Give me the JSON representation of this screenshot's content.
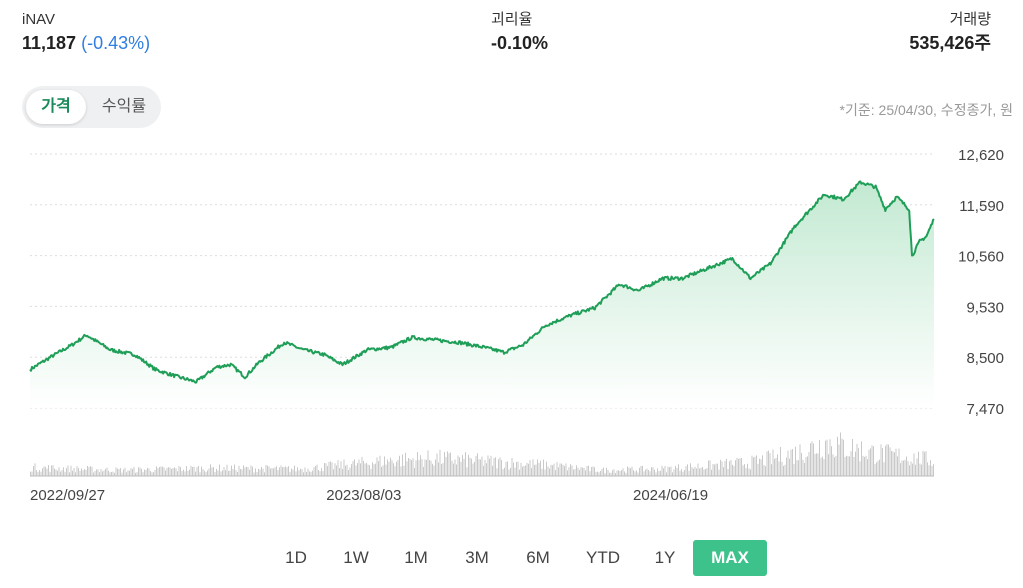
{
  "stats": {
    "inav": {
      "label": "iNAV",
      "value": "11,187",
      "change": "(-0.43%)"
    },
    "premium": {
      "label": "괴리율",
      "value": "-0.10%"
    },
    "volume": {
      "label": "거래량",
      "value": "535,426주"
    }
  },
  "toggle": {
    "price_label": "가격",
    "return_label": "수익률",
    "active": "price"
  },
  "basis_note": "*기준: 25/04/30, 수정종가, 원",
  "periods": [
    {
      "label": "1D",
      "active": false
    },
    {
      "label": "1W",
      "active": false
    },
    {
      "label": "1M",
      "active": false
    },
    {
      "label": "3M",
      "active": false
    },
    {
      "label": "6M",
      "active": false
    },
    {
      "label": "YTD",
      "active": false
    },
    {
      "label": "1Y",
      "active": false
    },
    {
      "label": "MAX",
      "active": true
    }
  ],
  "colors": {
    "line": "#1f9e58",
    "fill_top": "#bfe8cf",
    "volume": "#c9c9c9",
    "accent": "#3cc28a",
    "negative": "#2f7de1"
  },
  "chart_data": {
    "type": "line",
    "title": "",
    "xlabel": "",
    "ylabel": "",
    "ylim": [
      7470,
      12620
    ],
    "yticks": [
      "12,620",
      "11,590",
      "10,560",
      "9,530",
      "8,500",
      "7,470"
    ],
    "ytick_values": [
      12620,
      11590,
      10560,
      9530,
      8500,
      7470
    ],
    "xtick_labels": [
      "2022/09/27",
      "2023/08/03",
      "2024/06/19"
    ],
    "xrange": [
      "2022-09-27",
      "2025-04-30"
    ],
    "grid": true,
    "series": [
      {
        "points": [
          [
            "2022-09-27",
            8250
          ],
          [
            "2022-10-20",
            8520
          ],
          [
            "2022-11-10",
            8750
          ],
          [
            "2022-11-25",
            8950
          ],
          [
            "2022-12-20",
            8650
          ],
          [
            "2023-01-15",
            8550
          ],
          [
            "2023-02-05",
            8250
          ],
          [
            "2023-03-01",
            8100
          ],
          [
            "2023-03-20",
            8000
          ],
          [
            "2023-04-10",
            8300
          ],
          [
            "2023-04-25",
            8350
          ],
          [
            "2023-05-10",
            8100
          ],
          [
            "2023-05-25",
            8400
          ],
          [
            "2023-06-20",
            8800
          ],
          [
            "2023-07-10",
            8650
          ],
          [
            "2023-08-01",
            8550
          ],
          [
            "2023-08-20",
            8350
          ],
          [
            "2023-09-15",
            8650
          ],
          [
            "2023-10-10",
            8700
          ],
          [
            "2023-11-01",
            8900
          ],
          [
            "2023-11-25",
            8850
          ],
          [
            "2023-12-20",
            8800
          ],
          [
            "2024-01-15",
            8700
          ],
          [
            "2024-02-05",
            8600
          ],
          [
            "2024-02-25",
            8750
          ],
          [
            "2024-03-20",
            9150
          ],
          [
            "2024-04-15",
            9350
          ],
          [
            "2024-05-10",
            9500
          ],
          [
            "2024-06-05",
            9980
          ],
          [
            "2024-06-25",
            9850
          ],
          [
            "2024-07-20",
            10100
          ],
          [
            "2024-08-10",
            10100
          ],
          [
            "2024-09-05",
            10300
          ],
          [
            "2024-10-01",
            10500
          ],
          [
            "2024-10-20",
            10100
          ],
          [
            "2024-11-10",
            10400
          ],
          [
            "2024-12-05",
            11150
          ],
          [
            "2025-01-05",
            11800
          ],
          [
            "2025-01-25",
            11700
          ],
          [
            "2025-02-12",
            12050
          ],
          [
            "2025-02-28",
            11950
          ],
          [
            "2025-03-10",
            11500
          ],
          [
            "2025-03-22",
            11750
          ],
          [
            "2025-04-04",
            11500
          ],
          [
            "2025-04-07",
            10550
          ],
          [
            "2025-04-15",
            10850
          ],
          [
            "2025-04-22",
            10950
          ],
          [
            "2025-04-30",
            11300
          ]
        ]
      }
    ],
    "volume_ylim": [
      0,
      1
    ],
    "volume_profile": [
      [
        0.0,
        0.22
      ],
      [
        0.05,
        0.18
      ],
      [
        0.1,
        0.15
      ],
      [
        0.2,
        0.2
      ],
      [
        0.3,
        0.18
      ],
      [
        0.4,
        0.4
      ],
      [
        0.45,
        0.45
      ],
      [
        0.57,
        0.28
      ],
      [
        0.63,
        0.15
      ],
      [
        0.7,
        0.18
      ],
      [
        0.8,
        0.35
      ],
      [
        0.85,
        0.6
      ],
      [
        0.88,
        0.85
      ],
      [
        0.93,
        0.6
      ],
      [
        1.0,
        0.4
      ]
    ]
  }
}
